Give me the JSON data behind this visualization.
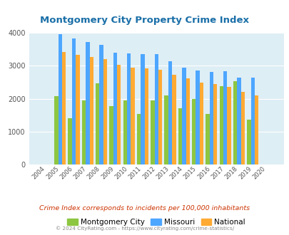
{
  "title": "Montgomery City Property Crime Index",
  "years": [
    2004,
    2005,
    2006,
    2007,
    2008,
    2009,
    2010,
    2011,
    2012,
    2013,
    2014,
    2015,
    2016,
    2017,
    2018,
    2019,
    2020
  ],
  "montgomery_city": [
    0,
    2080,
    1400,
    1950,
    2460,
    1780,
    1950,
    1530,
    1950,
    2110,
    1700,
    1990,
    1530,
    2380,
    2530,
    1360,
    0
  ],
  "missouri": [
    0,
    3960,
    3840,
    3730,
    3640,
    3400,
    3370,
    3360,
    3360,
    3140,
    2940,
    2860,
    2820,
    2830,
    2640,
    2640,
    0
  ],
  "national": [
    0,
    3410,
    3340,
    3270,
    3210,
    3030,
    2940,
    2920,
    2870,
    2730,
    2620,
    2490,
    2450,
    2360,
    2200,
    2100,
    0
  ],
  "montgomery_color": "#8dc641",
  "missouri_color": "#4da6ff",
  "national_color": "#ffaa33",
  "bg_color": "#deeef5",
  "ylim": [
    0,
    4000
  ],
  "yticks": [
    0,
    1000,
    2000,
    3000,
    4000
  ],
  "subtitle": "Crime Index corresponds to incidents per 100,000 inhabitants",
  "footer": "© 2024 CityRating.com - https://www.cityrating.com/crime-statistics/",
  "title_color": "#1a6fa8",
  "subtitle_color": "#cc3300",
  "footer_color": "#888888",
  "legend_labels": [
    "Montgomery City",
    "Missouri",
    "National"
  ]
}
